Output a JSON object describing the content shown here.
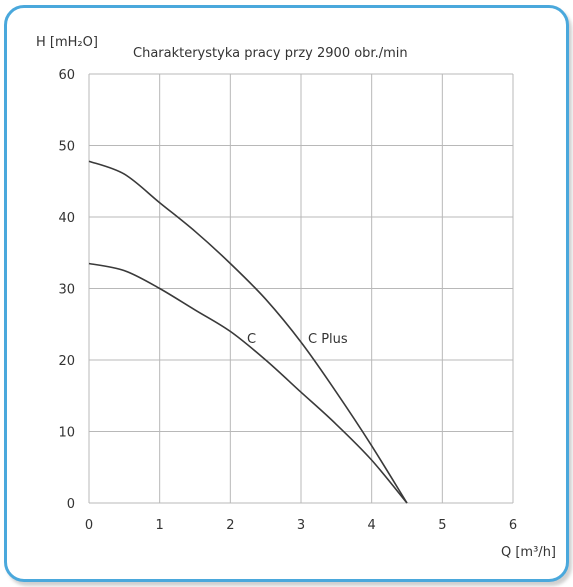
{
  "chart_data": {
    "type": "line",
    "title": "Charakterystyka pracy przy 2900 obr./min",
    "ylabel": "H [mH₂O]",
    "xlabel": "Q [m³/h]",
    "xlim": [
      0,
      6
    ],
    "ylim": [
      0,
      60
    ],
    "x_ticks": [
      "0",
      "1",
      "2",
      "3",
      "4",
      "5",
      "6"
    ],
    "y_ticks": [
      "0",
      "10",
      "20",
      "30",
      "40",
      "50",
      "60"
    ],
    "grid": true,
    "series": [
      {
        "name": "C",
        "x": [
          0,
          0.5,
          1,
          1.5,
          2,
          2.5,
          3,
          3.5,
          4,
          4.5
        ],
        "y": [
          33.5,
          32.5,
          30,
          27,
          24,
          20,
          15.5,
          11,
          6,
          0
        ]
      },
      {
        "name": "C Plus",
        "x": [
          0,
          0.5,
          1,
          1.5,
          2,
          2.5,
          3,
          3.5,
          4,
          4.5
        ],
        "y": [
          47.8,
          46,
          42,
          38,
          33.5,
          28.5,
          22.5,
          15.5,
          8,
          0
        ]
      }
    ],
    "curve_color": "#3a3a3a",
    "grid_color": "#b8b8b8"
  },
  "colors": {
    "frame_border": "#4aa8dc"
  }
}
